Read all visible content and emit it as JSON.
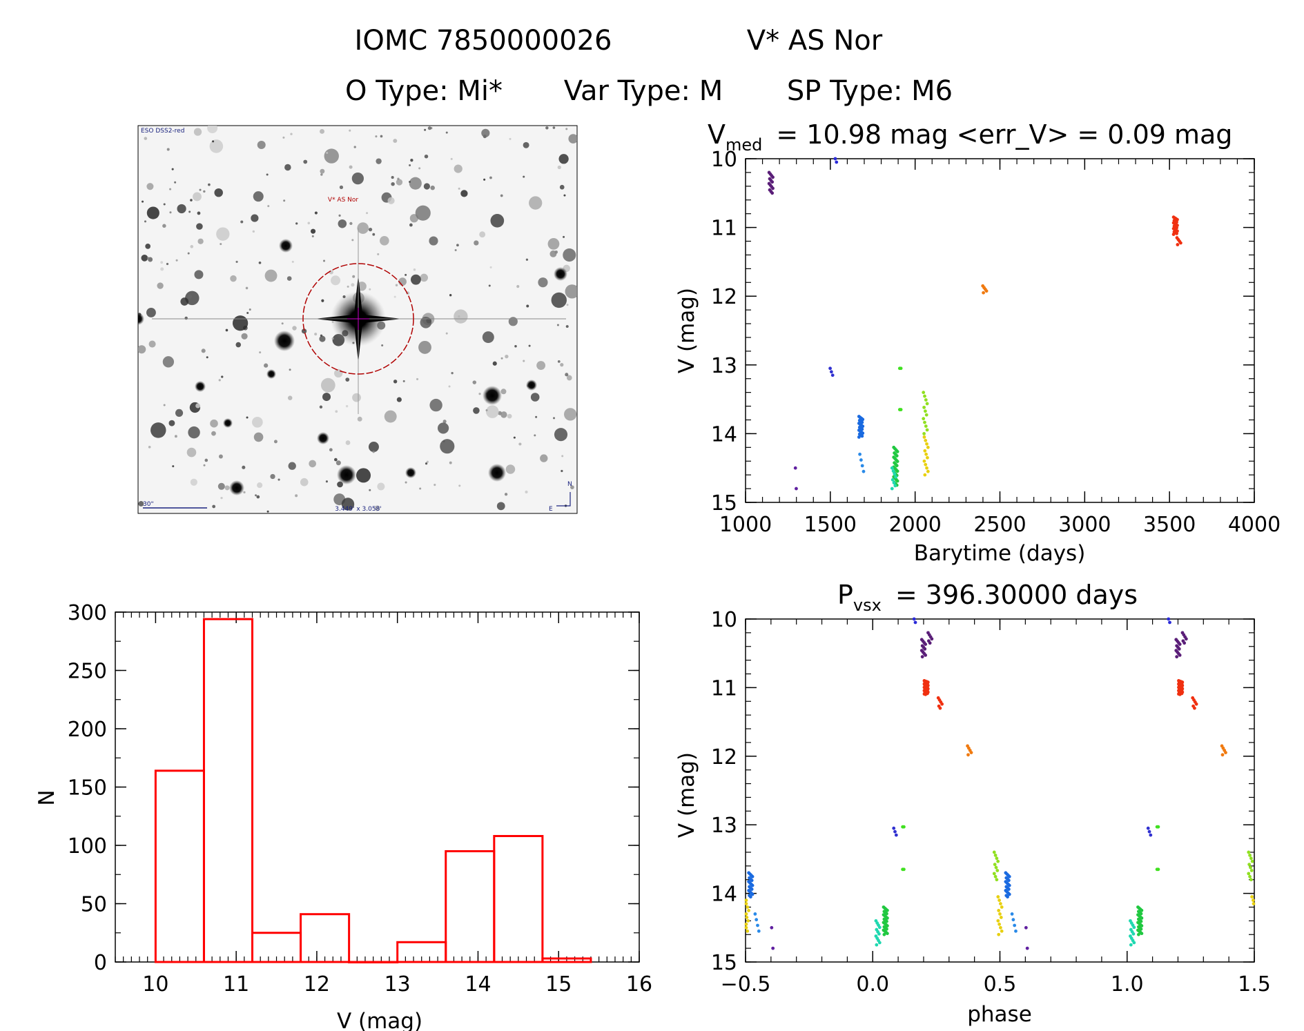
{
  "header": {
    "title_left": "IOMC 7850000026",
    "title_right": "V* AS Nor",
    "subtitle_otype": "O Type: Mi*",
    "subtitle_vartype": "Var Type: M",
    "subtitle_sptype": "SP Type: M6"
  },
  "finder": {
    "survey_label": "ESO DSS2-red",
    "target_label": "V* AS Nor",
    "scale_label": "30\"",
    "fov_label": "3.449' x 3.058'",
    "north_label": "N",
    "east_label": "E"
  },
  "chart_data": [
    {
      "type": "scatter",
      "id": "lightcurve",
      "title_main": "V",
      "title_sub": "med",
      "title_rest": "= 10.98 mag <err_V> = 0.09 mag",
      "xlabel": "Barytime (days)",
      "ylabel": "V (mag)",
      "xlim": [
        1000,
        4000
      ],
      "ylim": [
        15,
        10
      ],
      "y_inverted": true,
      "xticks": [
        1000,
        1500,
        2000,
        2500,
        3000,
        3500,
        4000
      ],
      "yticks": [
        10,
        11,
        12,
        13,
        14,
        15
      ],
      "groups": [
        {
          "x": 1150,
          "y": [
            10.2,
            10.5
          ],
          "n": 14,
          "color": "#5a1e78"
        },
        {
          "x": 1540,
          "y": [
            10.0,
            10.05
          ],
          "n": 2,
          "color": "#2a2ad8"
        },
        {
          "x": 1305,
          "y": [
            14.5,
            14.5
          ],
          "n": 1,
          "color": "#6020a0"
        },
        {
          "x": 1310,
          "y": [
            14.8,
            14.8
          ],
          "n": 1,
          "color": "#6020a0"
        },
        {
          "x": 1510,
          "y": [
            13.05,
            13.15
          ],
          "n": 3,
          "color": "#3030d0"
        },
        {
          "x": 1680,
          "y": [
            13.75,
            14.05
          ],
          "n": 22,
          "color": "#1a6ae0"
        },
        {
          "x": 1685,
          "y": [
            14.3,
            14.55
          ],
          "n": 4,
          "color": "#2a8ae8"
        },
        {
          "x": 1885,
          "y": [
            14.2,
            14.75
          ],
          "n": 28,
          "color": "#20c840"
        },
        {
          "x": 1875,
          "y": [
            14.5,
            14.8
          ],
          "n": 8,
          "color": "#20d8b0"
        },
        {
          "x": 1920,
          "y": [
            13.05,
            13.05
          ],
          "n": 2,
          "color": "#40e020"
        },
        {
          "x": 1920,
          "y": [
            13.65,
            13.65
          ],
          "n": 2,
          "color": "#40e020"
        },
        {
          "x": 2060,
          "y": [
            13.4,
            14.0
          ],
          "n": 12,
          "color": "#90e020"
        },
        {
          "x": 2065,
          "y": [
            14.05,
            14.6
          ],
          "n": 12,
          "color": "#e8d010"
        },
        {
          "x": 2410,
          "y": [
            11.85,
            11.95
          ],
          "n": 5,
          "color": "#f07a10"
        },
        {
          "x": 3535,
          "y": [
            10.85,
            11.1
          ],
          "n": 22,
          "color": "#f03010"
        },
        {
          "x": 3555,
          "y": [
            11.15,
            11.25
          ],
          "n": 5,
          "color": "#f03010"
        }
      ]
    },
    {
      "type": "bar",
      "id": "histogram",
      "xlabel": "V (mag)",
      "ylabel": "N",
      "xlim": [
        9.5,
        16
      ],
      "ylim": [
        0,
        300
      ],
      "xticks": [
        10,
        11,
        12,
        13,
        14,
        15,
        16
      ],
      "yticks": [
        0,
        50,
        100,
        150,
        200,
        250,
        300
      ],
      "bin_width": 0.6,
      "bins": [
        {
          "left": 10.0,
          "count": 164
        },
        {
          "left": 10.6,
          "count": 294
        },
        {
          "left": 11.2,
          "count": 25
        },
        {
          "left": 11.8,
          "count": 41
        },
        {
          "left": 12.4,
          "count": 0
        },
        {
          "left": 13.0,
          "count": 17
        },
        {
          "left": 13.6,
          "count": 95
        },
        {
          "left": 14.2,
          "count": 108
        },
        {
          "left": 14.8,
          "count": 3
        }
      ],
      "color": "#ff0000"
    },
    {
      "type": "scatter",
      "id": "phased",
      "title_main": "P",
      "title_sub": "vsx",
      "title_rest": "= 396.30000 days",
      "xlabel": "phase",
      "ylabel": "V (mag)",
      "xlim": [
        -0.5,
        1.5
      ],
      "ylim": [
        15,
        10
      ],
      "y_inverted": true,
      "xticks": [
        -0.5,
        0.0,
        0.5,
        1.0,
        1.5
      ],
      "xtick_labels": [
        "−0.5",
        "0.0",
        "0.5",
        "1.0",
        "1.5"
      ],
      "yticks": [
        10,
        11,
        12,
        13,
        14,
        15
      ],
      "groups": [
        {
          "x": 0.17,
          "y": [
            10.0,
            10.05
          ],
          "n": 2,
          "color": "#2a2ad8"
        },
        {
          "x": 0.2,
          "y": [
            10.3,
            10.55
          ],
          "n": 12,
          "color": "#5a1e78"
        },
        {
          "x": 0.225,
          "y": [
            10.2,
            10.35
          ],
          "n": 6,
          "color": "#5a1e78"
        },
        {
          "x": 0.21,
          "y": [
            10.9,
            11.1
          ],
          "n": 30,
          "color": "#f03010"
        },
        {
          "x": 0.265,
          "y": [
            11.15,
            11.3
          ],
          "n": 6,
          "color": "#f03010"
        },
        {
          "x": 0.38,
          "y": [
            11.85,
            11.98
          ],
          "n": 5,
          "color": "#f07a10"
        },
        {
          "x": 0.09,
          "y": [
            13.05,
            13.15
          ],
          "n": 3,
          "color": "#3030d0"
        },
        {
          "x": 0.125,
          "y": [
            13.03,
            13.03
          ],
          "n": 2,
          "color": "#40e020"
        },
        {
          "x": 0.125,
          "y": [
            13.65,
            13.65
          ],
          "n": 2,
          "color": "#40e020"
        },
        {
          "x": 0.05,
          "y": [
            14.2,
            14.6
          ],
          "n": 26,
          "color": "#20c840"
        },
        {
          "x": 0.02,
          "y": [
            14.4,
            14.75
          ],
          "n": 12,
          "color": "#20d8b0"
        },
        {
          "x": 0.53,
          "y": [
            13.7,
            14.05
          ],
          "n": 20,
          "color": "#1a6ae0"
        },
        {
          "x": 0.555,
          "y": [
            14.3,
            14.55
          ],
          "n": 4,
          "color": "#2a8ae8"
        },
        {
          "x": 0.485,
          "y": [
            13.4,
            13.8
          ],
          "n": 10,
          "color": "#90e020"
        },
        {
          "x": 0.5,
          "y": [
            14.05,
            14.6
          ],
          "n": 12,
          "color": "#e8d010"
        },
        {
          "x": 0.61,
          "y": [
            14.5,
            14.5
          ],
          "n": 1,
          "color": "#6020a0"
        },
        {
          "x": 0.615,
          "y": [
            14.8,
            14.8
          ],
          "n": 1,
          "color": "#6020a0"
        },
        {
          "x": -0.48,
          "y": [
            13.7,
            14.05
          ],
          "n": 20,
          "color": "#1a6ae0"
        },
        {
          "x": -0.455,
          "y": [
            14.3,
            14.55
          ],
          "n": 4,
          "color": "#2a8ae8"
        },
        {
          "x": -0.495,
          "y": [
            14.1,
            14.55
          ],
          "n": 10,
          "color": "#e8d010"
        },
        {
          "x": -0.39,
          "y": [
            14.5,
            14.5
          ],
          "n": 1,
          "color": "#6020a0"
        },
        {
          "x": -0.385,
          "y": [
            14.8,
            14.8
          ],
          "n": 1,
          "color": "#6020a0"
        },
        {
          "x": 1.17,
          "y": [
            10.0,
            10.05
          ],
          "n": 2,
          "color": "#2a2ad8"
        },
        {
          "x": 1.2,
          "y": [
            10.3,
            10.55
          ],
          "n": 12,
          "color": "#5a1e78"
        },
        {
          "x": 1.225,
          "y": [
            10.2,
            10.35
          ],
          "n": 6,
          "color": "#5a1e78"
        },
        {
          "x": 1.21,
          "y": [
            10.9,
            11.1
          ],
          "n": 30,
          "color": "#f03010"
        },
        {
          "x": 1.265,
          "y": [
            11.15,
            11.3
          ],
          "n": 6,
          "color": "#f03010"
        },
        {
          "x": 1.38,
          "y": [
            11.85,
            11.98
          ],
          "n": 5,
          "color": "#f07a10"
        },
        {
          "x": 1.09,
          "y": [
            13.05,
            13.15
          ],
          "n": 3,
          "color": "#3030d0"
        },
        {
          "x": 1.125,
          "y": [
            13.03,
            13.03
          ],
          "n": 2,
          "color": "#40e020"
        },
        {
          "x": 1.125,
          "y": [
            13.65,
            13.65
          ],
          "n": 2,
          "color": "#40e020"
        },
        {
          "x": 1.05,
          "y": [
            14.2,
            14.6
          ],
          "n": 26,
          "color": "#20c840"
        },
        {
          "x": 1.02,
          "y": [
            14.4,
            14.75
          ],
          "n": 12,
          "color": "#20d8b0"
        },
        {
          "x": 1.485,
          "y": [
            13.4,
            13.8
          ],
          "n": 10,
          "color": "#90e020"
        },
        {
          "x": 1.498,
          "y": [
            14.05,
            14.15
          ],
          "n": 3,
          "color": "#e8d010"
        }
      ]
    }
  ]
}
